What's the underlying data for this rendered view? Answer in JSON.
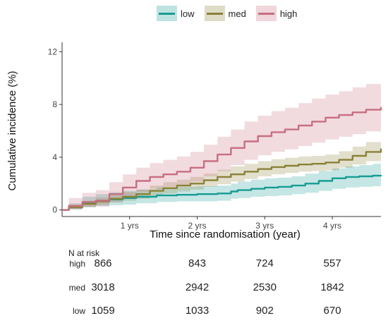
{
  "chart_data": {
    "type": "line",
    "title": "",
    "xlabel": "Time since randomisation (year)",
    "ylabel": "Cumulative incidence (%)",
    "xlim": [
      0,
      4.72
    ],
    "ylim": [
      -0.5,
      12.5
    ],
    "x_ticks": [
      1,
      2,
      3,
      4
    ],
    "x_tick_labels": [
      "1 yrs",
      "2 yrs",
      "3 yrs",
      "4 yrs"
    ],
    "y_ticks": [
      0,
      4,
      8,
      12
    ],
    "y_tick_labels": [
      "0",
      "4",
      "8",
      "12"
    ],
    "grid": false,
    "legend_position": "top",
    "series": [
      {
        "name": "low",
        "color": "#179c92",
        "x": [
          0,
          0.1,
          0.3,
          0.5,
          0.7,
          0.9,
          1.1,
          1.4,
          1.7,
          2.0,
          2.3,
          2.5,
          2.6,
          2.8,
          3.0,
          3.2,
          3.4,
          3.6,
          3.8,
          4.0,
          4.2,
          4.4,
          4.6,
          4.72
        ],
        "values": [
          0,
          0.2,
          0.5,
          0.7,
          0.8,
          0.9,
          1.0,
          1.1,
          1.15,
          1.2,
          1.25,
          1.4,
          1.5,
          1.6,
          1.7,
          1.75,
          1.85,
          2.0,
          2.2,
          2.4,
          2.5,
          2.55,
          2.6,
          2.65
        ],
        "ci_lower": [
          0,
          0.05,
          0.2,
          0.3,
          0.35,
          0.4,
          0.5,
          0.6,
          0.65,
          0.65,
          0.7,
          0.85,
          0.9,
          1.0,
          1.05,
          1.1,
          1.2,
          1.3,
          1.45,
          1.6,
          1.7,
          1.75,
          1.8,
          1.8
        ],
        "ci_upper": [
          0,
          0.5,
          1.0,
          1.2,
          1.35,
          1.45,
          1.55,
          1.7,
          1.75,
          1.8,
          1.85,
          2.0,
          2.15,
          2.3,
          2.4,
          2.45,
          2.55,
          2.75,
          2.95,
          3.15,
          3.3,
          3.4,
          3.5,
          3.5
        ]
      },
      {
        "name": "med",
        "color": "#8a8137",
        "x": [
          0,
          0.1,
          0.3,
          0.5,
          0.7,
          0.9,
          1.1,
          1.3,
          1.5,
          1.7,
          1.9,
          2.1,
          2.3,
          2.5,
          2.7,
          2.9,
          3.1,
          3.3,
          3.5,
          3.7,
          3.9,
          4.1,
          4.3,
          4.5,
          4.72
        ],
        "values": [
          0,
          0.2,
          0.45,
          0.65,
          0.85,
          1.0,
          1.2,
          1.45,
          1.65,
          1.85,
          2.0,
          2.25,
          2.5,
          2.7,
          2.9,
          3.1,
          3.25,
          3.35,
          3.45,
          3.5,
          3.6,
          3.8,
          4.1,
          4.4,
          4.65
        ],
        "ci_lower": [
          0,
          0.05,
          0.25,
          0.4,
          0.55,
          0.7,
          0.85,
          1.05,
          1.25,
          1.4,
          1.55,
          1.75,
          1.95,
          2.15,
          2.35,
          2.55,
          2.7,
          2.8,
          2.9,
          2.95,
          3.0,
          3.2,
          3.45,
          3.7,
          3.9
        ],
        "ci_upper": [
          0,
          0.4,
          0.7,
          0.95,
          1.15,
          1.35,
          1.55,
          1.85,
          2.1,
          2.3,
          2.5,
          2.75,
          3.05,
          3.3,
          3.5,
          3.7,
          3.85,
          3.95,
          4.05,
          4.1,
          4.2,
          4.45,
          4.8,
          5.15,
          5.45
        ]
      },
      {
        "name": "high",
        "color": "#c86e80",
        "x": [
          0,
          0.1,
          0.3,
          0.5,
          0.7,
          0.9,
          1.1,
          1.3,
          1.5,
          1.7,
          1.9,
          2.1,
          2.3,
          2.5,
          2.7,
          2.9,
          3.1,
          3.3,
          3.5,
          3.7,
          3.9,
          4.1,
          4.3,
          4.5,
          4.72
        ],
        "values": [
          0,
          0.3,
          0.6,
          0.7,
          1.2,
          1.7,
          2.2,
          2.5,
          2.7,
          2.9,
          3.2,
          3.7,
          4.2,
          4.7,
          5.2,
          5.6,
          5.9,
          6.1,
          6.4,
          6.7,
          7.0,
          7.2,
          7.4,
          7.6,
          7.8
        ],
        "ci_lower": [
          0,
          0.05,
          0.2,
          0.25,
          0.6,
          0.95,
          1.35,
          1.6,
          1.75,
          1.9,
          2.15,
          2.55,
          2.95,
          3.4,
          3.8,
          4.15,
          4.4,
          4.6,
          4.85,
          5.1,
          5.35,
          5.55,
          5.75,
          5.95,
          6.15
        ],
        "ci_upper": [
          0,
          0.9,
          1.3,
          1.5,
          2.1,
          2.7,
          3.2,
          3.55,
          3.8,
          4.05,
          4.4,
          4.95,
          5.55,
          6.1,
          6.7,
          7.15,
          7.5,
          7.75,
          8.1,
          8.45,
          8.75,
          9.0,
          9.3,
          9.55,
          9.85
        ]
      }
    ],
    "risk_table": {
      "title": "N at risk",
      "rows": [
        {
          "label": "high",
          "values": [
            "866",
            "843",
            "724",
            "557"
          ]
        },
        {
          "label": "med",
          "values": [
            "3018",
            "2942",
            "2530",
            "1842"
          ]
        },
        {
          "label": "low",
          "values": [
            "1059",
            "1033",
            "902",
            "670"
          ]
        }
      ]
    }
  }
}
